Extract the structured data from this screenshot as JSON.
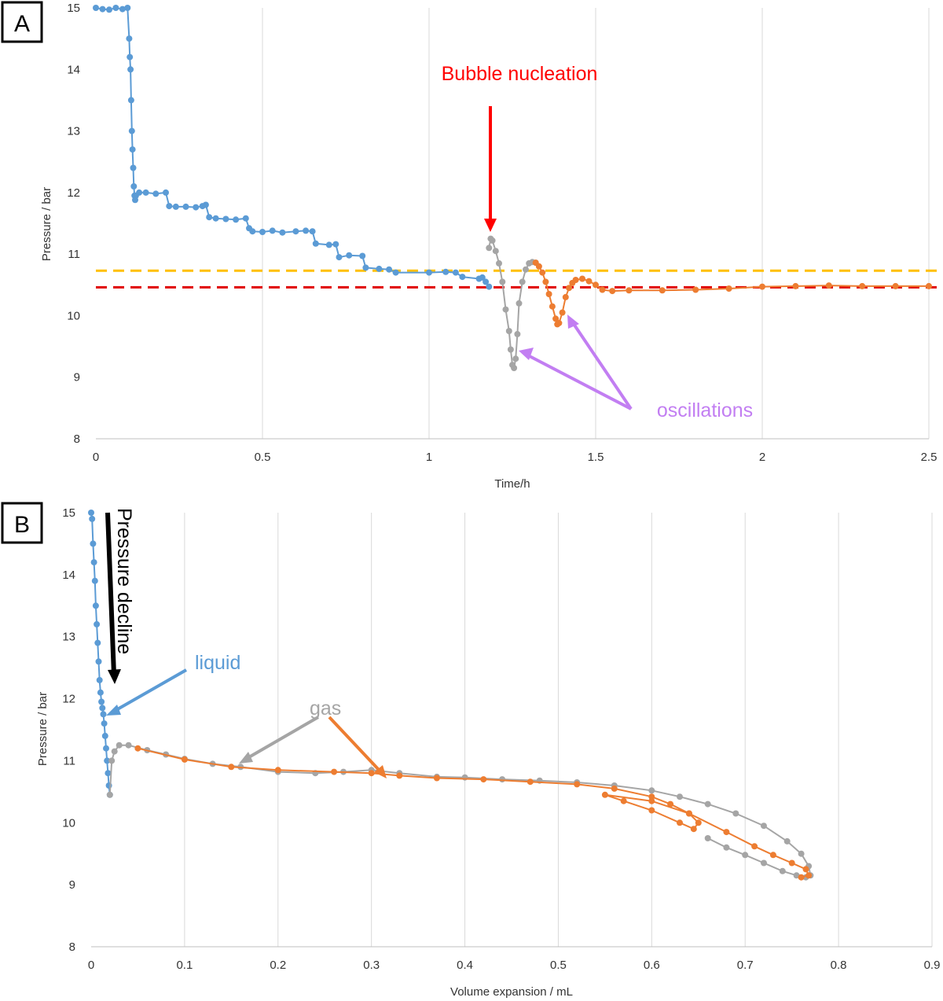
{
  "colors": {
    "liquid": "#5b9bd5",
    "gas_grey": "#a5a5a5",
    "gas_orange": "#ed7d31",
    "nucleation_arrow": "#ff0000",
    "oscillation_arrow": "#c27ef2",
    "yellow_line": "#ffc000",
    "red_line": "#e00000"
  },
  "chart_data": [
    {
      "panel": "A",
      "type": "scatter",
      "xlabel": "Time/h",
      "ylabel": "Pressure / bar",
      "xlim": [
        0,
        2.5
      ],
      "ylim": [
        8,
        15
      ],
      "x_ticks": [
        "0",
        "0.5",
        "1",
        "1.5",
        "2",
        "2.5"
      ],
      "y_ticks": [
        "8",
        "9",
        "10",
        "11",
        "12",
        "13",
        "14",
        "15"
      ],
      "grid": "vertical",
      "reference_lines": [
        {
          "y": 10.73,
          "color": "#ffc000",
          "style": "dashed"
        },
        {
          "y": 10.46,
          "color": "#e00000",
          "style": "dashed"
        }
      ],
      "annotations": {
        "nucleation": "Bubble nucleation",
        "oscillations": "oscillations"
      },
      "series": [
        {
          "color": "#5b9bd5",
          "x": [
            0.0,
            0.02,
            0.04,
            0.06,
            0.08,
            0.095,
            0.1,
            0.102,
            0.104,
            0.106,
            0.108,
            0.11,
            0.112,
            0.114,
            0.116,
            0.118,
            0.12,
            0.13,
            0.15,
            0.18,
            0.21,
            0.22,
            0.24,
            0.27,
            0.3,
            0.32,
            0.33,
            0.34,
            0.36,
            0.39,
            0.42,
            0.45,
            0.46,
            0.47,
            0.5,
            0.53,
            0.56,
            0.6,
            0.63,
            0.65,
            0.66,
            0.7,
            0.72,
            0.73,
            0.76,
            0.8,
            0.81,
            0.85,
            0.88,
            0.9,
            1.0,
            1.05,
            1.08,
            1.1,
            1.15,
            1.16,
            1.17,
            1.18
          ],
          "y": [
            15.0,
            14.98,
            14.97,
            15.0,
            14.98,
            15.0,
            14.5,
            14.2,
            14.0,
            13.5,
            13.0,
            12.7,
            12.4,
            12.1,
            11.95,
            11.88,
            11.95,
            12.0,
            12.0,
            11.98,
            12.0,
            11.78,
            11.77,
            11.77,
            11.76,
            11.78,
            11.8,
            11.6,
            11.58,
            11.57,
            11.56,
            11.58,
            11.42,
            11.37,
            11.36,
            11.38,
            11.35,
            11.37,
            11.38,
            11.37,
            11.17,
            11.15,
            11.16,
            10.95,
            10.98,
            10.97,
            10.78,
            10.76,
            10.75,
            10.7,
            10.7,
            10.71,
            10.7,
            10.63,
            10.6,
            10.62,
            10.55,
            10.47
          ]
        },
        {
          "color": "#a5a5a5",
          "x": [
            1.18,
            1.185,
            1.19,
            1.2,
            1.21,
            1.22,
            1.23,
            1.24,
            1.245,
            1.25,
            1.255,
            1.26,
            1.265,
            1.27,
            1.28,
            1.29,
            1.3,
            1.31,
            1.32
          ],
          "y": [
            11.1,
            11.25,
            11.22,
            11.05,
            10.85,
            10.55,
            10.1,
            9.75,
            9.45,
            9.2,
            9.15,
            9.3,
            9.7,
            10.2,
            10.55,
            10.75,
            10.85,
            10.87,
            10.86
          ]
        },
        {
          "color": "#ed7d31",
          "x": [
            1.32,
            1.33,
            1.34,
            1.35,
            1.36,
            1.37,
            1.38,
            1.385,
            1.39,
            1.4,
            1.41,
            1.42,
            1.43,
            1.44,
            1.46,
            1.48,
            1.5,
            1.52,
            1.55,
            1.6,
            1.7,
            1.8,
            1.9,
            2.0,
            2.1,
            2.2,
            2.3,
            2.4,
            2.5
          ],
          "y": [
            10.86,
            10.8,
            10.7,
            10.55,
            10.35,
            10.15,
            9.95,
            9.86,
            9.88,
            10.05,
            10.3,
            10.45,
            10.53,
            10.58,
            10.6,
            10.56,
            10.5,
            10.42,
            10.4,
            10.41,
            10.41,
            10.42,
            10.44,
            10.47,
            10.48,
            10.49,
            10.48,
            10.48,
            10.48
          ]
        }
      ]
    },
    {
      "panel": "B",
      "type": "scatter",
      "xlabel": "Volume expansion / mL",
      "ylabel": "Pressure / bar",
      "xlim": [
        0,
        0.9
      ],
      "ylim": [
        8,
        15
      ],
      "x_ticks": [
        "0",
        "0.1",
        "0.2",
        "0.3",
        "0.4",
        "0.5",
        "0.6",
        "0.7",
        "0.8",
        "0.9"
      ],
      "y_ticks": [
        "8",
        "9",
        "10",
        "11",
        "12",
        "13",
        "14",
        "15"
      ],
      "grid": "vertical",
      "annotations": {
        "pressure_decline": "Pressure decline",
        "liquid": "liquid",
        "gas": "gas"
      },
      "series": [
        {
          "color": "#5b9bd5",
          "x": [
            0.0,
            0.001,
            0.002,
            0.003,
            0.004,
            0.005,
            0.006,
            0.007,
            0.008,
            0.009,
            0.01,
            0.011,
            0.012,
            0.013,
            0.014,
            0.015,
            0.016,
            0.017,
            0.018,
            0.019,
            0.02
          ],
          "y": [
            15.0,
            14.9,
            14.5,
            14.2,
            13.9,
            13.5,
            13.2,
            12.9,
            12.6,
            12.3,
            12.1,
            11.95,
            11.85,
            11.75,
            11.6,
            11.4,
            11.2,
            11.0,
            10.8,
            10.6,
            10.45
          ]
        },
        {
          "color": "#a5a5a5",
          "x": [
            0.02,
            0.022,
            0.025,
            0.03,
            0.04,
            0.06,
            0.08,
            0.1,
            0.13,
            0.16,
            0.2,
            0.24,
            0.27,
            0.3,
            0.33,
            0.37,
            0.4,
            0.44,
            0.48,
            0.52,
            0.56,
            0.6,
            0.63,
            0.66,
            0.69,
            0.72,
            0.745,
            0.76,
            0.768,
            0.77,
            0.765,
            0.755,
            0.74,
            0.72,
            0.7,
            0.68,
            0.66
          ],
          "y": [
            10.45,
            11.0,
            11.15,
            11.25,
            11.25,
            11.17,
            11.1,
            11.03,
            10.95,
            10.9,
            10.82,
            10.8,
            10.82,
            10.85,
            10.8,
            10.74,
            10.73,
            10.7,
            10.68,
            10.65,
            10.6,
            10.52,
            10.42,
            10.3,
            10.15,
            9.95,
            9.7,
            9.5,
            9.3,
            9.15,
            9.12,
            9.15,
            9.22,
            9.35,
            9.48,
            9.6,
            9.75
          ]
        },
        {
          "color": "#ed7d31",
          "x": [
            0.05,
            0.1,
            0.15,
            0.2,
            0.26,
            0.3,
            0.33,
            0.37,
            0.42,
            0.47,
            0.52,
            0.56,
            0.6,
            0.62,
            0.64,
            0.65,
            0.645,
            0.63,
            0.6,
            0.57,
            0.55,
            0.6,
            0.64,
            0.68,
            0.71,
            0.73,
            0.75,
            0.765,
            0.768,
            0.76
          ],
          "y": [
            11.2,
            11.02,
            10.9,
            10.85,
            10.82,
            10.8,
            10.76,
            10.72,
            10.7,
            10.66,
            10.62,
            10.55,
            10.42,
            10.3,
            10.15,
            10.0,
            9.9,
            10.0,
            10.2,
            10.35,
            10.45,
            10.35,
            10.15,
            9.85,
            9.62,
            9.48,
            9.35,
            9.25,
            9.15,
            9.12
          ]
        }
      ]
    }
  ]
}
